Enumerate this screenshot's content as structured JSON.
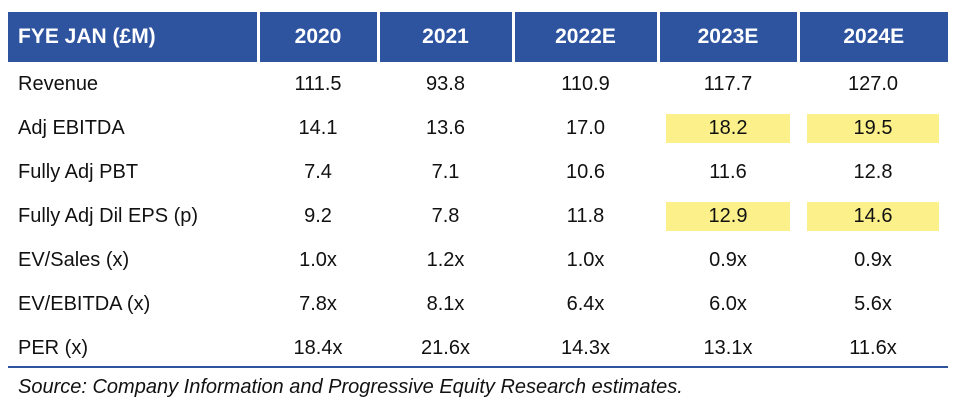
{
  "table": {
    "header": [
      "FYE JAN (£M)",
      "2020",
      "2021",
      "2022E",
      "2023E",
      "2024E"
    ],
    "rows": [
      {
        "label": "Revenue",
        "values": [
          "111.5",
          "93.8",
          "110.9",
          "117.7",
          "127.0"
        ]
      },
      {
        "label": "Adj EBITDA",
        "values": [
          "14.1",
          "13.6",
          "17.0",
          "18.2",
          "19.5"
        ],
        "highlighted_columns": [
          "2023E",
          "2024E"
        ]
      },
      {
        "label": "Fully Adj PBT",
        "values": [
          "7.4",
          "7.1",
          "10.6",
          "11.6",
          "12.8"
        ]
      },
      {
        "label": "Fully Adj Dil EPS (p)",
        "values": [
          "9.2",
          "7.8",
          "11.8",
          "12.9",
          "14.6"
        ],
        "highlighted_columns": [
          "2023E",
          "2024E"
        ]
      },
      {
        "label": "EV/Sales (x)",
        "values": [
          "1.0x",
          "1.2x",
          "1.0x",
          "0.9x",
          "0.9x"
        ]
      },
      {
        "label": "EV/EBITDA (x)",
        "values": [
          "7.8x",
          "8.1x",
          "6.4x",
          "6.0x",
          "5.6x"
        ]
      },
      {
        "label": "PER (x)",
        "values": [
          "18.4x",
          "21.6x",
          "14.3x",
          "13.1x",
          "11.6x"
        ]
      }
    ]
  },
  "source": "Source: Company Information and Progressive Equity Research estimates.",
  "colors": {
    "header_bg": "#2e54a0",
    "highlight": "#fbf08a",
    "rule": "#2e54a0"
  }
}
